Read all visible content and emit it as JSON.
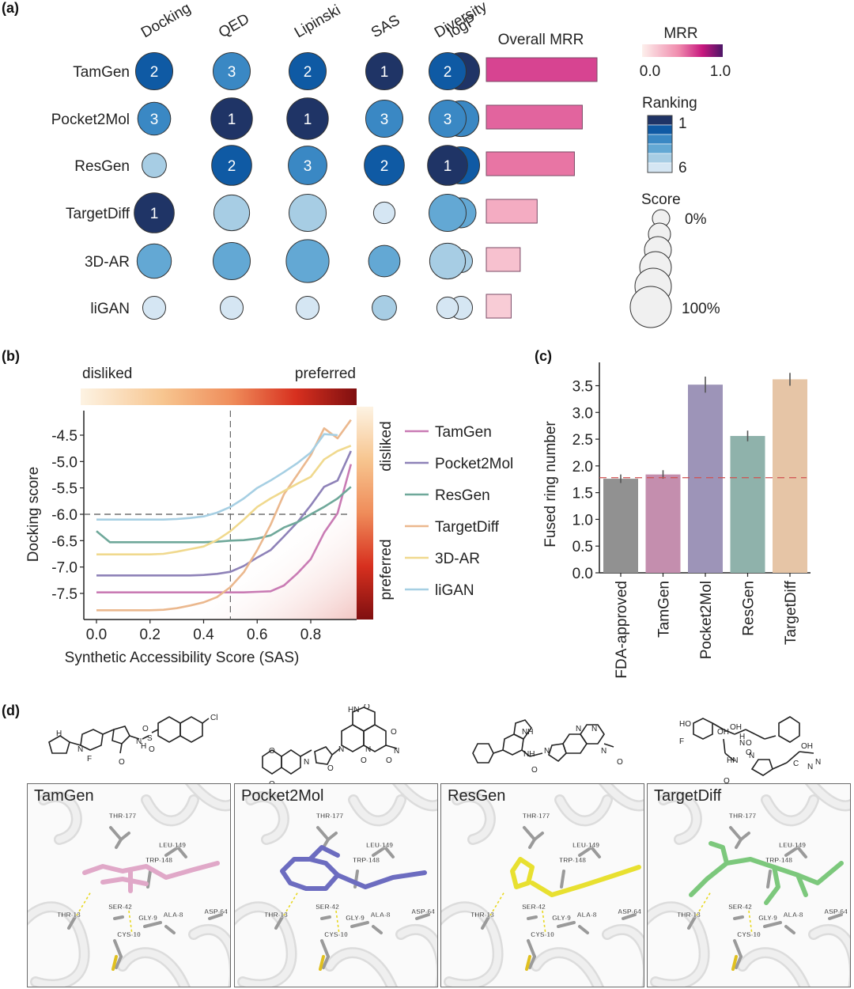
{
  "panels": {
    "a": "(a)",
    "b": "(b)",
    "c": "(c)",
    "d": "(d)"
  },
  "chart_data": [
    {
      "type": "bubble-matrix",
      "id": "a",
      "columns": [
        "Docking",
        "QED",
        "Lipinski",
        "SAS",
        "logP",
        "Diversity"
      ],
      "bar_header": "Overall MRR",
      "rows": [
        {
          "name": "TamGen",
          "ranks": [
            2,
            3,
            2,
            1,
            1,
            2
          ],
          "sizes": [
            0.75,
            0.75,
            0.75,
            0.75,
            0.75,
            0.75
          ],
          "mrr": 0.98
        },
        {
          "name": "Pocket2Mol",
          "ranks": [
            3,
            1,
            1,
            3,
            3,
            3
          ],
          "sizes": [
            0.6,
            0.9,
            0.9,
            0.75,
            0.7,
            0.75
          ],
          "mrr": 0.85
        },
        {
          "name": "ResGen",
          "ranks": [
            5,
            2,
            3,
            2,
            2,
            1
          ],
          "sizes": [
            0.3,
            0.85,
            0.8,
            0.85,
            0.75,
            0.85
          ],
          "mrr": 0.78
        },
        {
          "name": "TargetDiff",
          "ranks": [
            1,
            5,
            5,
            6,
            4,
            4
          ],
          "sizes": [
            0.85,
            0.7,
            0.75,
            0.2,
            0.5,
            0.75
          ],
          "mrr": 0.45
        },
        {
          "name": "3D-AR",
          "ranks": [
            4,
            4,
            4,
            4,
            5,
            5
          ],
          "sizes": [
            0.65,
            0.75,
            0.95,
            0.55,
            0.25,
            0.7
          ],
          "mrr": 0.3
        },
        {
          "name": "liGAN",
          "ranks": [
            6,
            6,
            6,
            5,
            6,
            6
          ],
          "sizes": [
            0.25,
            0.25,
            0.25,
            0.3,
            0.25,
            0.2
          ],
          "mrr": 0.22
        }
      ],
      "legend": {
        "mrr_title": "MRR",
        "mrr_min": "0.0",
        "mrr_max": "1.0",
        "ranking_title": "Ranking",
        "ranking_top": "1",
        "ranking_bottom": "6",
        "score_title": "Score",
        "score_min": "0%",
        "score_max": "100%"
      },
      "rank_colors": [
        "#1f3466",
        "#0f5aa4",
        "#3a88c4",
        "#63a8d4",
        "#a7cde4",
        "#d5e6f3"
      ]
    },
    {
      "type": "line",
      "id": "b",
      "xlabel": "Synthetic Accessibility Score (SAS)",
      "ylabel": "Docking score",
      "xlim": [
        -0.05,
        0.97
      ],
      "ylim": [
        -7.95,
        -4.0
      ],
      "xticks": [
        "0.0",
        "0.2",
        "0.4",
        "0.6",
        "0.8"
      ],
      "yticks": [
        "-4.5",
        "-5.0",
        "-5.5",
        "-6.0",
        "-6.5",
        "-7.0",
        "-7.5"
      ],
      "hline": -6.0,
      "vline": 0.5,
      "top_bar": {
        "left": "disliked",
        "right": "preferred"
      },
      "side_bar": {
        "top": "disliked",
        "bottom": "preferred"
      },
      "x": [
        0.0,
        0.05,
        0.1,
        0.15,
        0.2,
        0.25,
        0.3,
        0.35,
        0.4,
        0.45,
        0.5,
        0.55,
        0.6,
        0.65,
        0.7,
        0.75,
        0.8,
        0.85,
        0.9,
        0.95
      ],
      "series": [
        {
          "name": "TamGen",
          "color": "#c97bb4",
          "values": [
            -7.48,
            -7.48,
            -7.48,
            -7.48,
            -7.48,
            -7.48,
            -7.48,
            -7.48,
            -7.48,
            -7.48,
            -7.48,
            -7.48,
            -7.47,
            -7.46,
            -7.35,
            -7.12,
            -6.85,
            -6.35,
            -5.98,
            -5.05
          ]
        },
        {
          "name": "Pocket2Mol",
          "color": "#8e82b8",
          "values": [
            -7.16,
            -7.16,
            -7.16,
            -7.16,
            -7.16,
            -7.16,
            -7.16,
            -7.16,
            -7.15,
            -7.13,
            -7.09,
            -6.98,
            -6.82,
            -6.68,
            -6.42,
            -6.15,
            -5.83,
            -5.48,
            -5.36,
            -4.8
          ]
        },
        {
          "name": "ResGen",
          "color": "#6fa89a",
          "values": [
            -6.32,
            -6.53,
            -6.53,
            -6.53,
            -6.53,
            -6.53,
            -6.53,
            -6.53,
            -6.53,
            -6.52,
            -6.5,
            -6.49,
            -6.46,
            -6.4,
            -6.25,
            -6.15,
            -6.0,
            -5.86,
            -5.7,
            -5.48
          ]
        },
        {
          "name": "TargetDiff",
          "color": "#ebb88e",
          "values": [
            -7.82,
            -7.82,
            -7.82,
            -7.82,
            -7.82,
            -7.81,
            -7.78,
            -7.73,
            -7.67,
            -7.57,
            -7.38,
            -7.1,
            -6.68,
            -6.2,
            -5.62,
            -5.25,
            -4.88,
            -4.37,
            -4.56,
            -4.21
          ]
        },
        {
          "name": "3D-AR",
          "color": "#f0d98e",
          "values": [
            -6.76,
            -6.76,
            -6.76,
            -6.76,
            -6.76,
            -6.75,
            -6.71,
            -6.66,
            -6.61,
            -6.49,
            -6.32,
            -6.1,
            -5.86,
            -5.7,
            -5.56,
            -5.42,
            -5.29,
            -4.96,
            -4.8,
            -4.7
          ]
        },
        {
          "name": "liGAN",
          "color": "#a6cfe3",
          "values": [
            -6.1,
            -6.1,
            -6.1,
            -6.1,
            -6.1,
            -6.1,
            -6.09,
            -6.07,
            -6.04,
            -5.97,
            -5.86,
            -5.7,
            -5.5,
            -5.36,
            -5.2,
            -5.03,
            -4.83,
            -4.48,
            -4.5,
            null
          ]
        }
      ]
    },
    {
      "type": "bar",
      "id": "c",
      "ylabel": "Fused ring number",
      "categories": [
        "FDA-approved",
        "TamGen",
        "Pocket2Mol",
        "ResGen",
        "TargetDiff"
      ],
      "values": [
        1.76,
        1.84,
        3.52,
        2.56,
        3.62
      ],
      "errors": [
        0.08,
        0.08,
        0.15,
        0.1,
        0.12
      ],
      "colors": [
        "#919191",
        "#c48eae",
        "#9d94b8",
        "#8fb2ab",
        "#e6c5a6"
      ],
      "reference_line": 1.78,
      "ylim": [
        0,
        3.9
      ],
      "yticks": [
        "0.0",
        "0.5",
        "1.0",
        "1.5",
        "2.0",
        "2.5",
        "3.0",
        "3.5"
      ]
    }
  ],
  "panel_d": {
    "boxes": [
      {
        "title": "TamGen",
        "ligand_color": "#e0a8c8"
      },
      {
        "title": "Pocket2Mol",
        "ligand_color": "#6c6cc0"
      },
      {
        "title": "ResGen",
        "ligand_color": "#e8e030"
      },
      {
        "title": "TargetDiff",
        "ligand_color": "#7cc87c"
      }
    ],
    "residues": [
      "THR-177",
      "LEU-149",
      "TRP-148",
      "SER-42",
      "THR-13",
      "GLY-9",
      "ALA-8",
      "ASP-64",
      "CYS-10"
    ],
    "structure_labels": {
      "tamgen": [
        "H",
        "N",
        "F",
        "O",
        "H",
        "N",
        "S",
        "O",
        "O",
        "Cl"
      ],
      "pocket2mol": [
        "HN",
        "O",
        "N",
        "N",
        "O",
        "O",
        "N",
        "O",
        "O",
        "O",
        "N",
        "O"
      ],
      "resgen": [
        "NH",
        "NH",
        "O",
        "N",
        "N",
        "N",
        "N",
        "O"
      ],
      "targetdiff": [
        "HO",
        "F",
        "OH",
        "OH",
        "H",
        "N",
        "O",
        "O",
        "OH",
        "HN",
        "N",
        "O",
        "C",
        "N",
        "N"
      ]
    }
  }
}
